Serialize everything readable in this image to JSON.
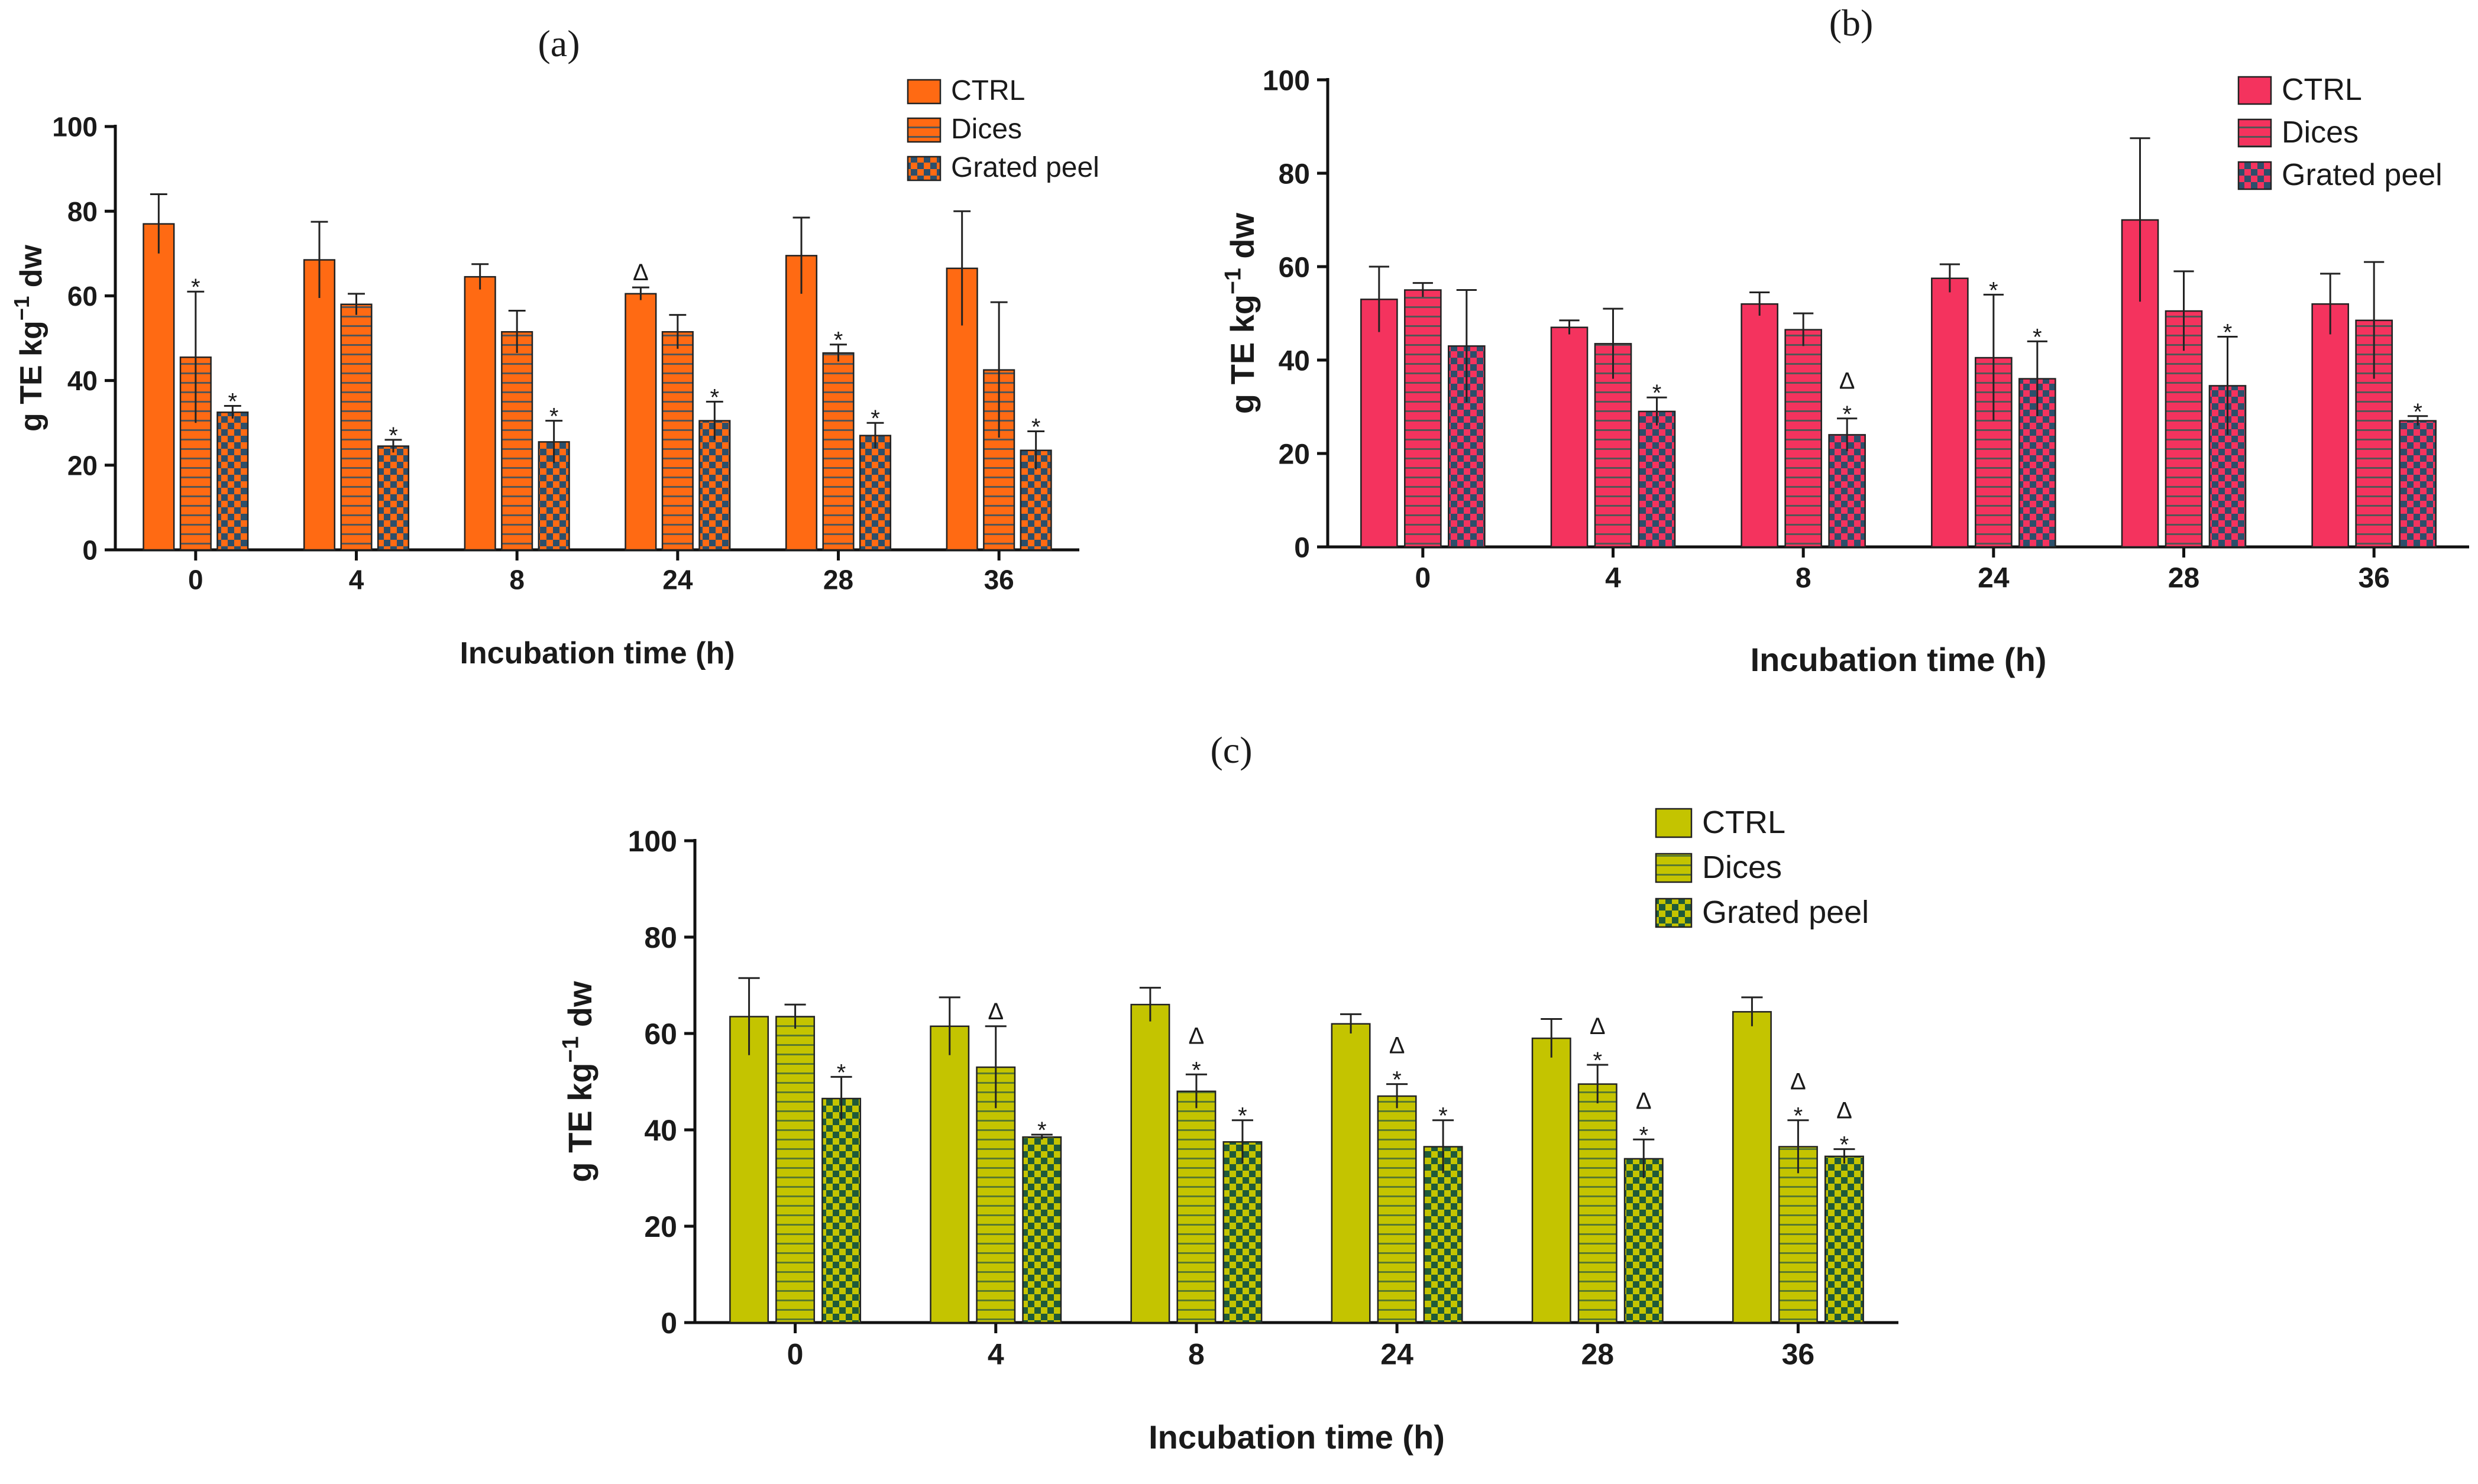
{
  "chart_data": [
    {
      "type": "bar",
      "panel": "a",
      "title": "",
      "xlabel": "Incubation time (h)",
      "ylabel": "g TE kg-1 dw",
      "ylim": [
        0,
        100
      ],
      "yticks": [
        0,
        20,
        40,
        60,
        80,
        100
      ],
      "categories": [
        "0",
        "4",
        "8",
        "24",
        "28",
        "36"
      ],
      "legend_position": "top-right",
      "colors": {
        "base": "#ff6a13",
        "stripe": "#555555",
        "check": "#2c4f6b"
      },
      "series": [
        {
          "name": "CTRL",
          "pattern": "solid",
          "values": [
            77,
            68.5,
            64.5,
            60.5,
            69.5,
            66.5
          ],
          "errors": [
            7,
            9,
            3,
            1.5,
            9,
            13.5
          ],
          "markers": [
            "",
            "",
            "",
            "Δ",
            "",
            ""
          ]
        },
        {
          "name": "Dices",
          "pattern": "horizontal-stripes",
          "values": [
            45.5,
            58,
            51.5,
            51.5,
            46.5,
            42.5
          ],
          "errors": [
            15.5,
            2.5,
            5,
            4,
            2,
            16
          ],
          "markers": [
            "*",
            "",
            "",
            "",
            "*",
            ""
          ]
        },
        {
          "name": "Grated peel",
          "pattern": "checker",
          "values": [
            32.5,
            24.5,
            25.5,
            30.5,
            27,
            23.5
          ],
          "errors": [
            1.5,
            1.5,
            5,
            4.5,
            3,
            4.5
          ],
          "markers": [
            "*",
            "*",
            "*",
            "*",
            "*",
            "*"
          ]
        }
      ]
    },
    {
      "type": "bar",
      "panel": "b",
      "title": "",
      "xlabel": "Incubation time (h)",
      "ylabel": "g TE kg-1 dw",
      "ylim": [
        0,
        100
      ],
      "yticks": [
        0,
        20,
        40,
        60,
        80,
        100
      ],
      "categories": [
        "0",
        "4",
        "8",
        "24",
        "28",
        "36"
      ],
      "legend_position": "top-right",
      "colors": {
        "base": "#f4335e",
        "stripe": "#555555",
        "check": "#2c4f6b"
      },
      "series": [
        {
          "name": "CTRL",
          "pattern": "solid",
          "values": [
            53,
            47,
            52,
            57.5,
            70,
            52
          ],
          "errors": [
            7,
            1.5,
            2.5,
            3,
            17.5,
            6.5
          ],
          "markers": [
            "",
            "",
            "",
            "",
            "",
            ""
          ]
        },
        {
          "name": "Dices",
          "pattern": "horizontal-stripes",
          "values": [
            55,
            43.5,
            46.5,
            40.5,
            50.5,
            48.5
          ],
          "errors": [
            1.5,
            7.5,
            3.5,
            13.5,
            8.5,
            12.5
          ],
          "markers": [
            "",
            "",
            "",
            "*",
            "",
            ""
          ]
        },
        {
          "name": "Grated peel",
          "pattern": "checker",
          "values": [
            43,
            29,
            24,
            36,
            34.5,
            27
          ],
          "errors": [
            12,
            3,
            3.5,
            8,
            10.5,
            1
          ],
          "markers": [
            "",
            "*",
            "*Δ",
            "*",
            "*",
            "*"
          ]
        }
      ]
    },
    {
      "type": "bar",
      "panel": "c",
      "title": "",
      "xlabel": "Incubation time (h)",
      "ylabel": "g TE kg-1 dw",
      "ylim": [
        0,
        100
      ],
      "yticks": [
        0,
        20,
        40,
        60,
        80,
        100
      ],
      "categories": [
        "0",
        "4",
        "8",
        "24",
        "28",
        "36"
      ],
      "legend_position": "top-right",
      "colors": {
        "base": "#c4c400",
        "stripe": "#5a7a2e",
        "check": "#1f5a3a"
      },
      "series": [
        {
          "name": "CTRL",
          "pattern": "solid",
          "values": [
            63.5,
            61.5,
            66,
            62,
            59,
            64.5
          ],
          "errors": [
            8,
            6,
            3.5,
            2,
            4,
            3
          ],
          "markers": [
            "",
            "",
            "",
            "",
            "",
            ""
          ]
        },
        {
          "name": "Dices",
          "pattern": "horizontal-stripes",
          "values": [
            63.5,
            53,
            48,
            47,
            49.5,
            36.5
          ],
          "errors": [
            2.5,
            8.5,
            3.5,
            2.5,
            4,
            5.5
          ],
          "markers": [
            "",
            "Δ",
            "*Δ",
            "*Δ",
            "*Δ",
            "*Δ"
          ]
        },
        {
          "name": "Grated peel",
          "pattern": "checker",
          "values": [
            46.5,
            38.5,
            37.5,
            36.5,
            34,
            34.5
          ],
          "errors": [
            4.5,
            0.5,
            4.5,
            5.5,
            4,
            1.5
          ],
          "markers": [
            "*",
            "*",
            "*",
            "*",
            "*Δ",
            "*Δ"
          ]
        }
      ]
    }
  ],
  "panel_labels": [
    "(a)",
    "(b)",
    "(c)"
  ]
}
